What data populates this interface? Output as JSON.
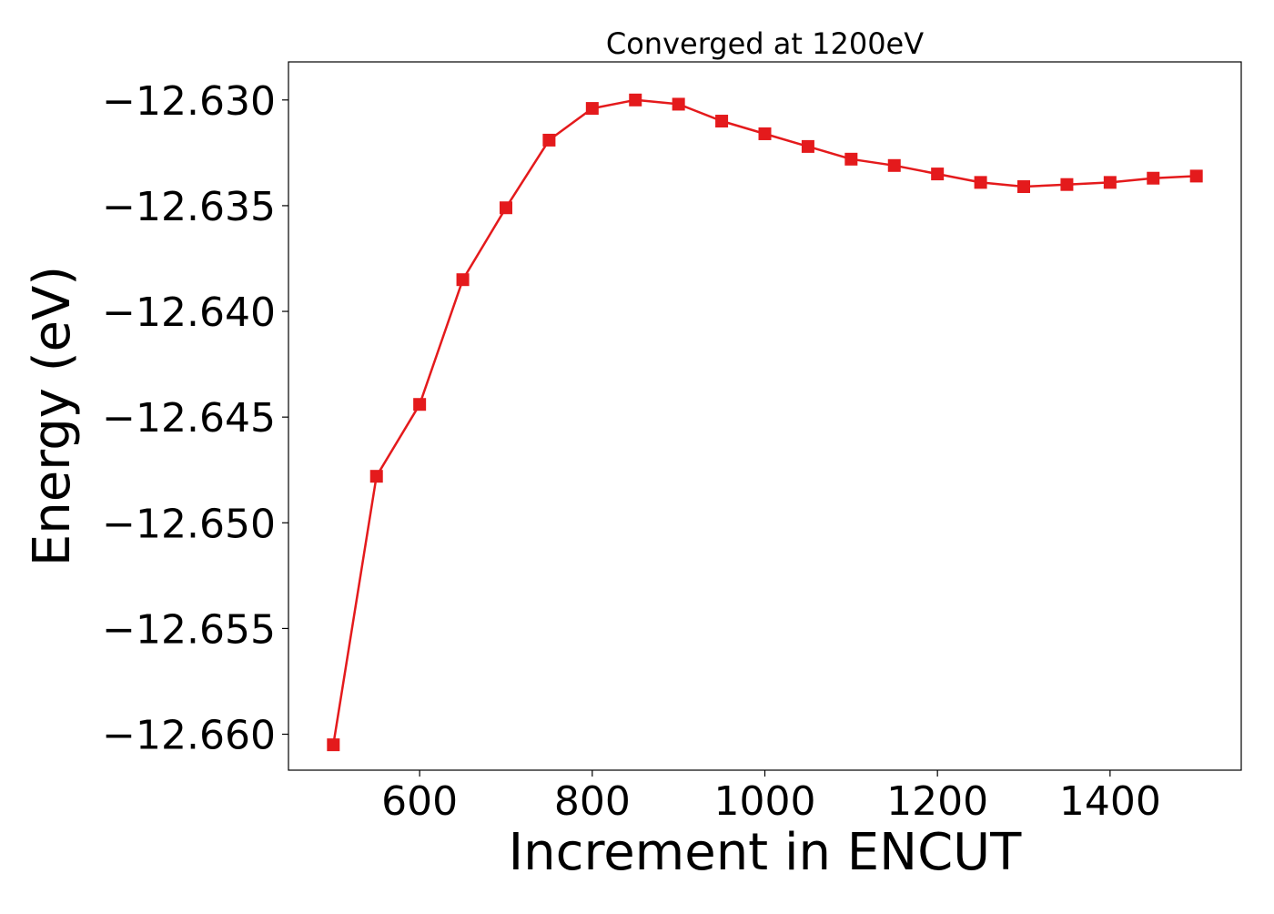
{
  "chart_data": {
    "type": "line",
    "title": "Converged at 1200eV",
    "xlabel": "Increment in ENCUT",
    "ylabel": "Energy (eV)",
    "xlim": [
      448,
      1552
    ],
    "ylim": [
      -12.6617,
      -12.6282
    ],
    "x_ticks": [
      600,
      800,
      1000,
      1200,
      1400
    ],
    "x_tick_labels": [
      "600",
      "800",
      "1000",
      "1200",
      "1400"
    ],
    "y_ticks": [
      -12.63,
      -12.635,
      -12.64,
      -12.645,
      -12.65,
      -12.655,
      -12.66
    ],
    "y_tick_labels": [
      "−12.630",
      "−12.635",
      "−12.640",
      "−12.645",
      "−12.650",
      "−12.655",
      "−12.660"
    ],
    "grid": false,
    "legend": "none",
    "series": [
      {
        "color": "#e41a1c",
        "marker": "square",
        "x": [
          500,
          550,
          600,
          650,
          700,
          750,
          800,
          850,
          900,
          950,
          1000,
          1050,
          1100,
          1150,
          1200,
          1250,
          1300,
          1350,
          1400,
          1450,
          1500
        ],
        "y": [
          -12.6605,
          -12.6478,
          -12.6444,
          -12.6385,
          -12.6351,
          -12.6319,
          -12.6304,
          -12.63,
          -12.6302,
          -12.631,
          -12.6316,
          -12.6322,
          -12.6328,
          -12.6331,
          -12.6335,
          -12.6339,
          -12.6341,
          -12.634,
          -12.6339,
          -12.6337,
          -12.6336
        ]
      }
    ]
  }
}
